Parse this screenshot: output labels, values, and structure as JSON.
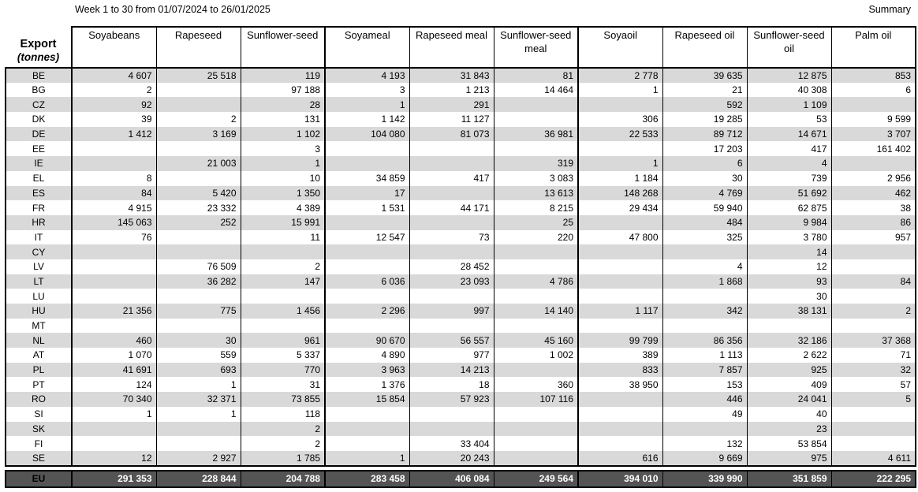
{
  "header": {
    "title": "Week 1 to 30 from 01/07/2024 to 26/01/2025",
    "summary_label": "Summary"
  },
  "colors": {
    "stripe": "#d9d9d9",
    "total_row_bg": "#545454",
    "total_row_text": "#ffffff",
    "border": "#000000"
  },
  "table": {
    "corner": {
      "title": "Export",
      "subtitle": "(tonnes)"
    },
    "columns": [
      "Soyabeans",
      "Rapeseed",
      "Sunflower-seed",
      "Soyameal",
      "Rapeseed meal",
      "Sunflower-seed meal",
      "Soyaoil",
      "Rapeseed oil",
      "Sunflower-seed oil",
      "Palm oil"
    ],
    "rows": [
      {
        "code": "BE",
        "values": [
          "4 607",
          "25 518",
          "119",
          "4 193",
          "31 843",
          "81",
          "2 778",
          "39 635",
          "12 875",
          "853"
        ]
      },
      {
        "code": "BG",
        "values": [
          "2",
          "",
          "97 188",
          "3",
          "1 213",
          "14 464",
          "1",
          "21",
          "40 308",
          "6"
        ]
      },
      {
        "code": "CZ",
        "values": [
          "92",
          "",
          "28",
          "1",
          "291",
          "",
          "",
          "592",
          "1 109",
          ""
        ]
      },
      {
        "code": "DK",
        "values": [
          "39",
          "2",
          "131",
          "1 142",
          "11 127",
          "",
          "306",
          "19 285",
          "53",
          "9 599"
        ]
      },
      {
        "code": "DE",
        "values": [
          "1 412",
          "3 169",
          "1 102",
          "104 080",
          "81 073",
          "36 981",
          "22 533",
          "89 712",
          "14 671",
          "3 707"
        ]
      },
      {
        "code": "EE",
        "values": [
          "",
          "",
          "3",
          "",
          "",
          "",
          "",
          "17 203",
          "417",
          "161 402"
        ]
      },
      {
        "code": "IE",
        "values": [
          "",
          "21 003",
          "1",
          "",
          "",
          "319",
          "1",
          "6",
          "4",
          ""
        ]
      },
      {
        "code": "EL",
        "values": [
          "8",
          "",
          "10",
          "34 859",
          "417",
          "3 083",
          "1 184",
          "30",
          "739",
          "2 956"
        ]
      },
      {
        "code": "ES",
        "values": [
          "84",
          "5 420",
          "1 350",
          "17",
          "",
          "13 613",
          "148 268",
          "4 769",
          "51 692",
          "462"
        ]
      },
      {
        "code": "FR",
        "values": [
          "4 915",
          "23 332",
          "4 389",
          "1 531",
          "44 171",
          "8 215",
          "29 434",
          "59 940",
          "62 875",
          "38"
        ]
      },
      {
        "code": "HR",
        "values": [
          "145 063",
          "252",
          "15 991",
          "",
          "",
          "25",
          "",
          "484",
          "9 984",
          "86"
        ]
      },
      {
        "code": "IT",
        "values": [
          "76",
          "",
          "11",
          "12 547",
          "73",
          "220",
          "47 800",
          "325",
          "3 780",
          "957"
        ]
      },
      {
        "code": "CY",
        "values": [
          "",
          "",
          "",
          "",
          "",
          "",
          "",
          "",
          "14",
          ""
        ]
      },
      {
        "code": "LV",
        "values": [
          "",
          "76 509",
          "2",
          "",
          "28 452",
          "",
          "",
          "4",
          "12",
          ""
        ]
      },
      {
        "code": "LT",
        "values": [
          "",
          "36 282",
          "147",
          "6 036",
          "23 093",
          "4 786",
          "",
          "1 868",
          "93",
          "84"
        ]
      },
      {
        "code": "LU",
        "values": [
          "",
          "",
          "",
          "",
          "",
          "",
          "",
          "",
          "30",
          ""
        ]
      },
      {
        "code": "HU",
        "values": [
          "21 356",
          "775",
          "1 456",
          "2 296",
          "997",
          "14 140",
          "1 117",
          "342",
          "38 131",
          "2"
        ]
      },
      {
        "code": "MT",
        "values": [
          "",
          "",
          "",
          "",
          "",
          "",
          "",
          "",
          "",
          ""
        ]
      },
      {
        "code": "NL",
        "values": [
          "460",
          "30",
          "961",
          "90 670",
          "56 557",
          "45 160",
          "99 799",
          "86 356",
          "32 186",
          "37 368"
        ]
      },
      {
        "code": "AT",
        "values": [
          "1 070",
          "559",
          "5 337",
          "4 890",
          "977",
          "1 002",
          "389",
          "1 113",
          "2 622",
          "71"
        ]
      },
      {
        "code": "PL",
        "values": [
          "41 691",
          "693",
          "770",
          "3 963",
          "14 213",
          "",
          "833",
          "7 857",
          "925",
          "32"
        ]
      },
      {
        "code": "PT",
        "values": [
          "124",
          "1",
          "31",
          "1 376",
          "18",
          "360",
          "38 950",
          "153",
          "409",
          "57"
        ]
      },
      {
        "code": "RO",
        "values": [
          "70 340",
          "32 371",
          "73 855",
          "15 854",
          "57 923",
          "107 116",
          "",
          "446",
          "24 041",
          "5"
        ]
      },
      {
        "code": "SI",
        "values": [
          "1",
          "1",
          "118",
          "",
          "",
          "",
          "",
          "49",
          "40",
          ""
        ]
      },
      {
        "code": "SK",
        "values": [
          "",
          "",
          "2",
          "",
          "",
          "",
          "",
          "",
          "23",
          ""
        ]
      },
      {
        "code": "FI",
        "values": [
          "",
          "",
          "2",
          "",
          "33 404",
          "",
          "",
          "132",
          "53 854",
          ""
        ]
      },
      {
        "code": "SE",
        "values": [
          "12",
          "2 927",
          "1 785",
          "1",
          "20 243",
          "",
          "616",
          "9 669",
          "975",
          "4 611"
        ]
      }
    ],
    "total": {
      "code": "EU",
      "values": [
        "291 353",
        "228 844",
        "204 788",
        "283 458",
        "406 084",
        "249 564",
        "394 010",
        "339 990",
        "351 859",
        "222 295"
      ]
    }
  }
}
